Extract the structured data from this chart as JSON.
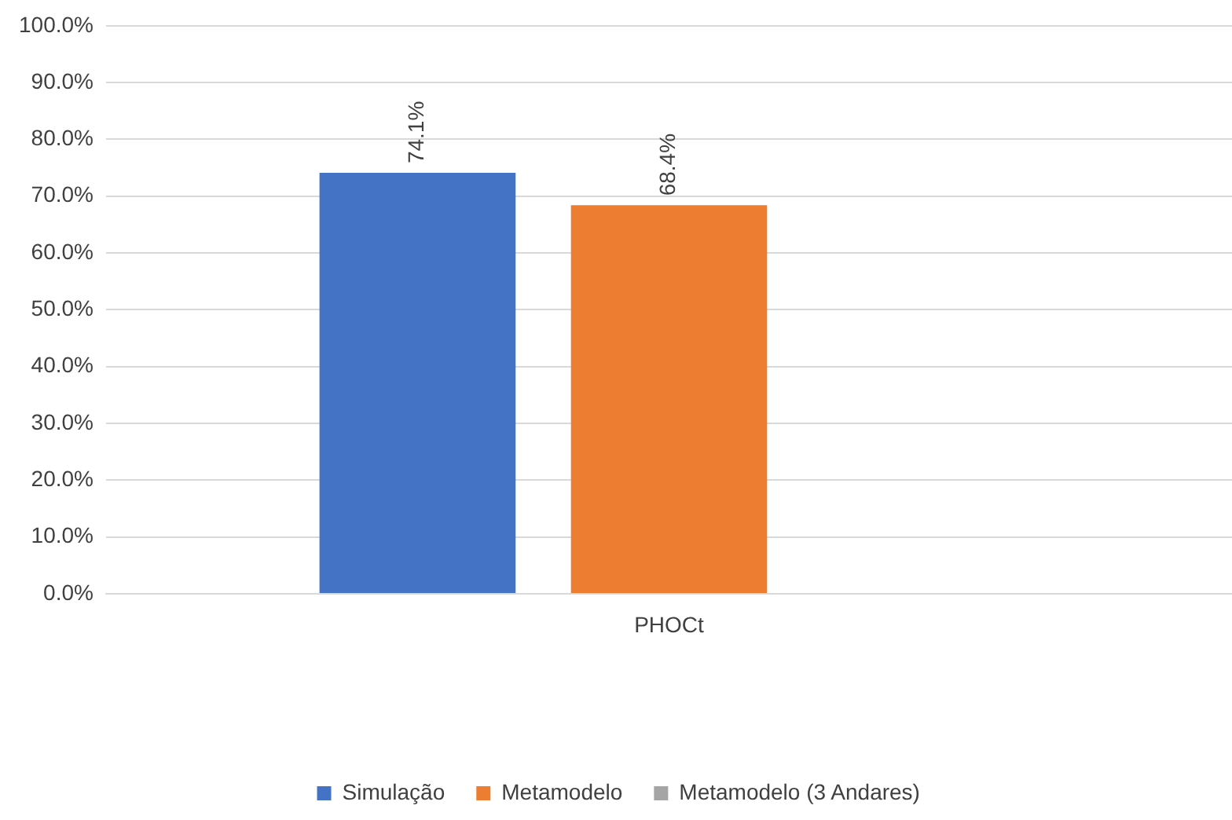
{
  "chart_data": {
    "type": "bar",
    "categories": [
      "PHOCt"
    ],
    "series": [
      {
        "name": "Simulação",
        "color": "#4472c4",
        "values": [
          74.1
        ],
        "value_labels": [
          "74.1%"
        ]
      },
      {
        "name": "Metamodelo",
        "color": "#ed7d31",
        "values": [
          68.4
        ],
        "value_labels": [
          "68.4%"
        ]
      },
      {
        "name": "Metamodelo (3 Andares)",
        "color": "#a5a5a5",
        "values": [
          null
        ],
        "value_labels": [
          null
        ]
      }
    ],
    "ylim": [
      0,
      100
    ],
    "yticks": [
      {
        "value": 0,
        "label": "0.0%"
      },
      {
        "value": 10,
        "label": "10.0%"
      },
      {
        "value": 20,
        "label": "20.0%"
      },
      {
        "value": 30,
        "label": "30.0%"
      },
      {
        "value": 40,
        "label": "40.0%"
      },
      {
        "value": 50,
        "label": "50.0%"
      },
      {
        "value": 60,
        "label": "60.0%"
      },
      {
        "value": 70,
        "label": "70.0%"
      },
      {
        "value": 80,
        "label": "80.0%"
      },
      {
        "value": 90,
        "label": "90.0%"
      },
      {
        "value": 100,
        "label": "100.0%"
      }
    ],
    "grid": "y",
    "legend": "bottom"
  }
}
